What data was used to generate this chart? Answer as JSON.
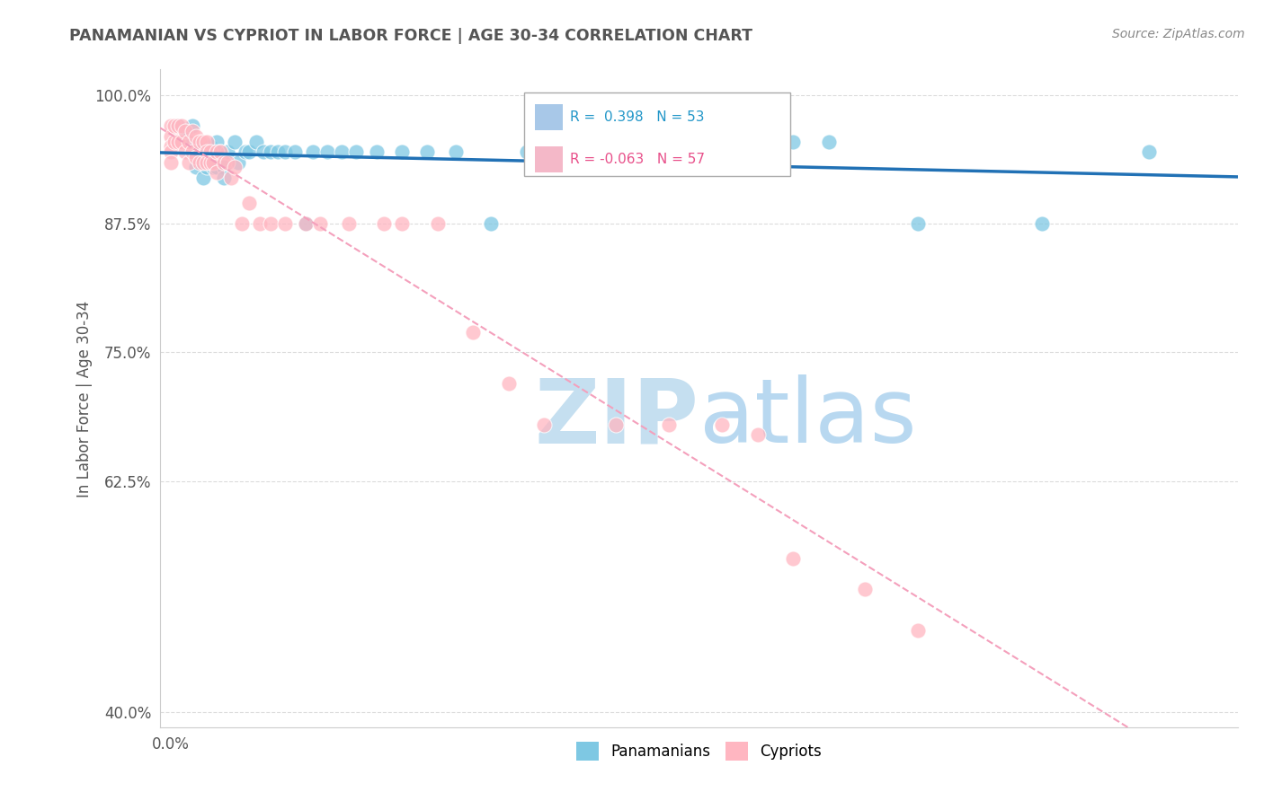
{
  "title": "PANAMANIAN VS CYPRIOT IN LABOR FORCE | AGE 30-34 CORRELATION CHART",
  "ylabel": "In Labor Force | Age 30-34",
  "source": "Source: ZipAtlas.com",
  "xlim": [
    -0.003,
    0.295
  ],
  "ylim": [
    0.385,
    1.025
  ],
  "x_ticks": [
    0.0,
    0.1,
    0.2,
    0.3
  ],
  "x_tick_labels": [
    "0.0%",
    "",
    "",
    ""
  ],
  "y_ticks": [
    0.4,
    0.625,
    0.75,
    0.875,
    1.0
  ],
  "y_tick_labels": [
    "40.0%",
    "62.5%",
    "75.0%",
    "87.5%",
    "100.0%"
  ],
  "R_blue": 0.398,
  "N_blue": 53,
  "R_pink": -0.063,
  "N_pink": 57,
  "blue_scatter_x": [
    0.002,
    0.004,
    0.006,
    0.007,
    0.007,
    0.008,
    0.009,
    0.009,
    0.01,
    0.01,
    0.011,
    0.011,
    0.012,
    0.012,
    0.013,
    0.013,
    0.014,
    0.015,
    0.015,
    0.016,
    0.018,
    0.019,
    0.021,
    0.022,
    0.024,
    0.026,
    0.028,
    0.03,
    0.032,
    0.035,
    0.038,
    0.04,
    0.044,
    0.048,
    0.052,
    0.058,
    0.065,
    0.072,
    0.08,
    0.09,
    0.1,
    0.105,
    0.115,
    0.125,
    0.135,
    0.145,
    0.155,
    0.165,
    0.175,
    0.185,
    0.21,
    0.245,
    0.275
  ],
  "blue_scatter_y": [
    0.97,
    0.96,
    0.97,
    0.95,
    0.93,
    0.945,
    0.935,
    0.92,
    0.945,
    0.93,
    0.95,
    0.935,
    0.945,
    0.93,
    0.955,
    0.93,
    0.945,
    0.93,
    0.92,
    0.945,
    0.955,
    0.935,
    0.945,
    0.945,
    0.955,
    0.945,
    0.945,
    0.945,
    0.945,
    0.945,
    0.875,
    0.945,
    0.945,
    0.945,
    0.945,
    0.945,
    0.945,
    0.945,
    0.945,
    0.875,
    0.945,
    0.945,
    0.945,
    0.945,
    0.945,
    0.955,
    0.945,
    0.945,
    0.955,
    0.955,
    0.875,
    0.875,
    0.945
  ],
  "pink_scatter_x": [
    0.0,
    0.0,
    0.0,
    0.0,
    0.0,
    0.001,
    0.001,
    0.002,
    0.002,
    0.003,
    0.003,
    0.004,
    0.004,
    0.005,
    0.005,
    0.006,
    0.006,
    0.007,
    0.007,
    0.008,
    0.008,
    0.009,
    0.009,
    0.01,
    0.01,
    0.01,
    0.011,
    0.011,
    0.012,
    0.013,
    0.013,
    0.014,
    0.015,
    0.016,
    0.017,
    0.018,
    0.02,
    0.022,
    0.025,
    0.028,
    0.032,
    0.038,
    0.042,
    0.05,
    0.06,
    0.065,
    0.075,
    0.085,
    0.095,
    0.105,
    0.125,
    0.14,
    0.155,
    0.165,
    0.175,
    0.195,
    0.21
  ],
  "pink_scatter_y": [
    0.97,
    0.96,
    0.95,
    0.945,
    0.935,
    0.97,
    0.955,
    0.97,
    0.955,
    0.97,
    0.955,
    0.965,
    0.945,
    0.955,
    0.935,
    0.965,
    0.945,
    0.96,
    0.94,
    0.955,
    0.935,
    0.955,
    0.935,
    0.955,
    0.945,
    0.935,
    0.945,
    0.935,
    0.935,
    0.945,
    0.925,
    0.945,
    0.935,
    0.935,
    0.92,
    0.93,
    0.875,
    0.895,
    0.875,
    0.875,
    0.875,
    0.875,
    0.875,
    0.875,
    0.875,
    0.875,
    0.875,
    0.77,
    0.72,
    0.68,
    0.68,
    0.68,
    0.68,
    0.67,
    0.55,
    0.52,
    0.48
  ],
  "blue_color": "#7ec8e3",
  "pink_color": "#ffb6c1",
  "blue_line_color": "#2171b5",
  "pink_line_color": "#f768a1",
  "pink_line_color_faded": "#f4a0bc",
  "grid_color": "#cccccc",
  "watermark_zip_color": "#c5dff0",
  "watermark_atlas_color": "#b8d8f0",
  "legend_box_color_blue": "#a8c8e8",
  "legend_box_color_pink": "#f4b8c8",
  "title_color": "#555555",
  "source_color": "#888888",
  "ylabel_color": "#555555",
  "tick_color": "#555555"
}
